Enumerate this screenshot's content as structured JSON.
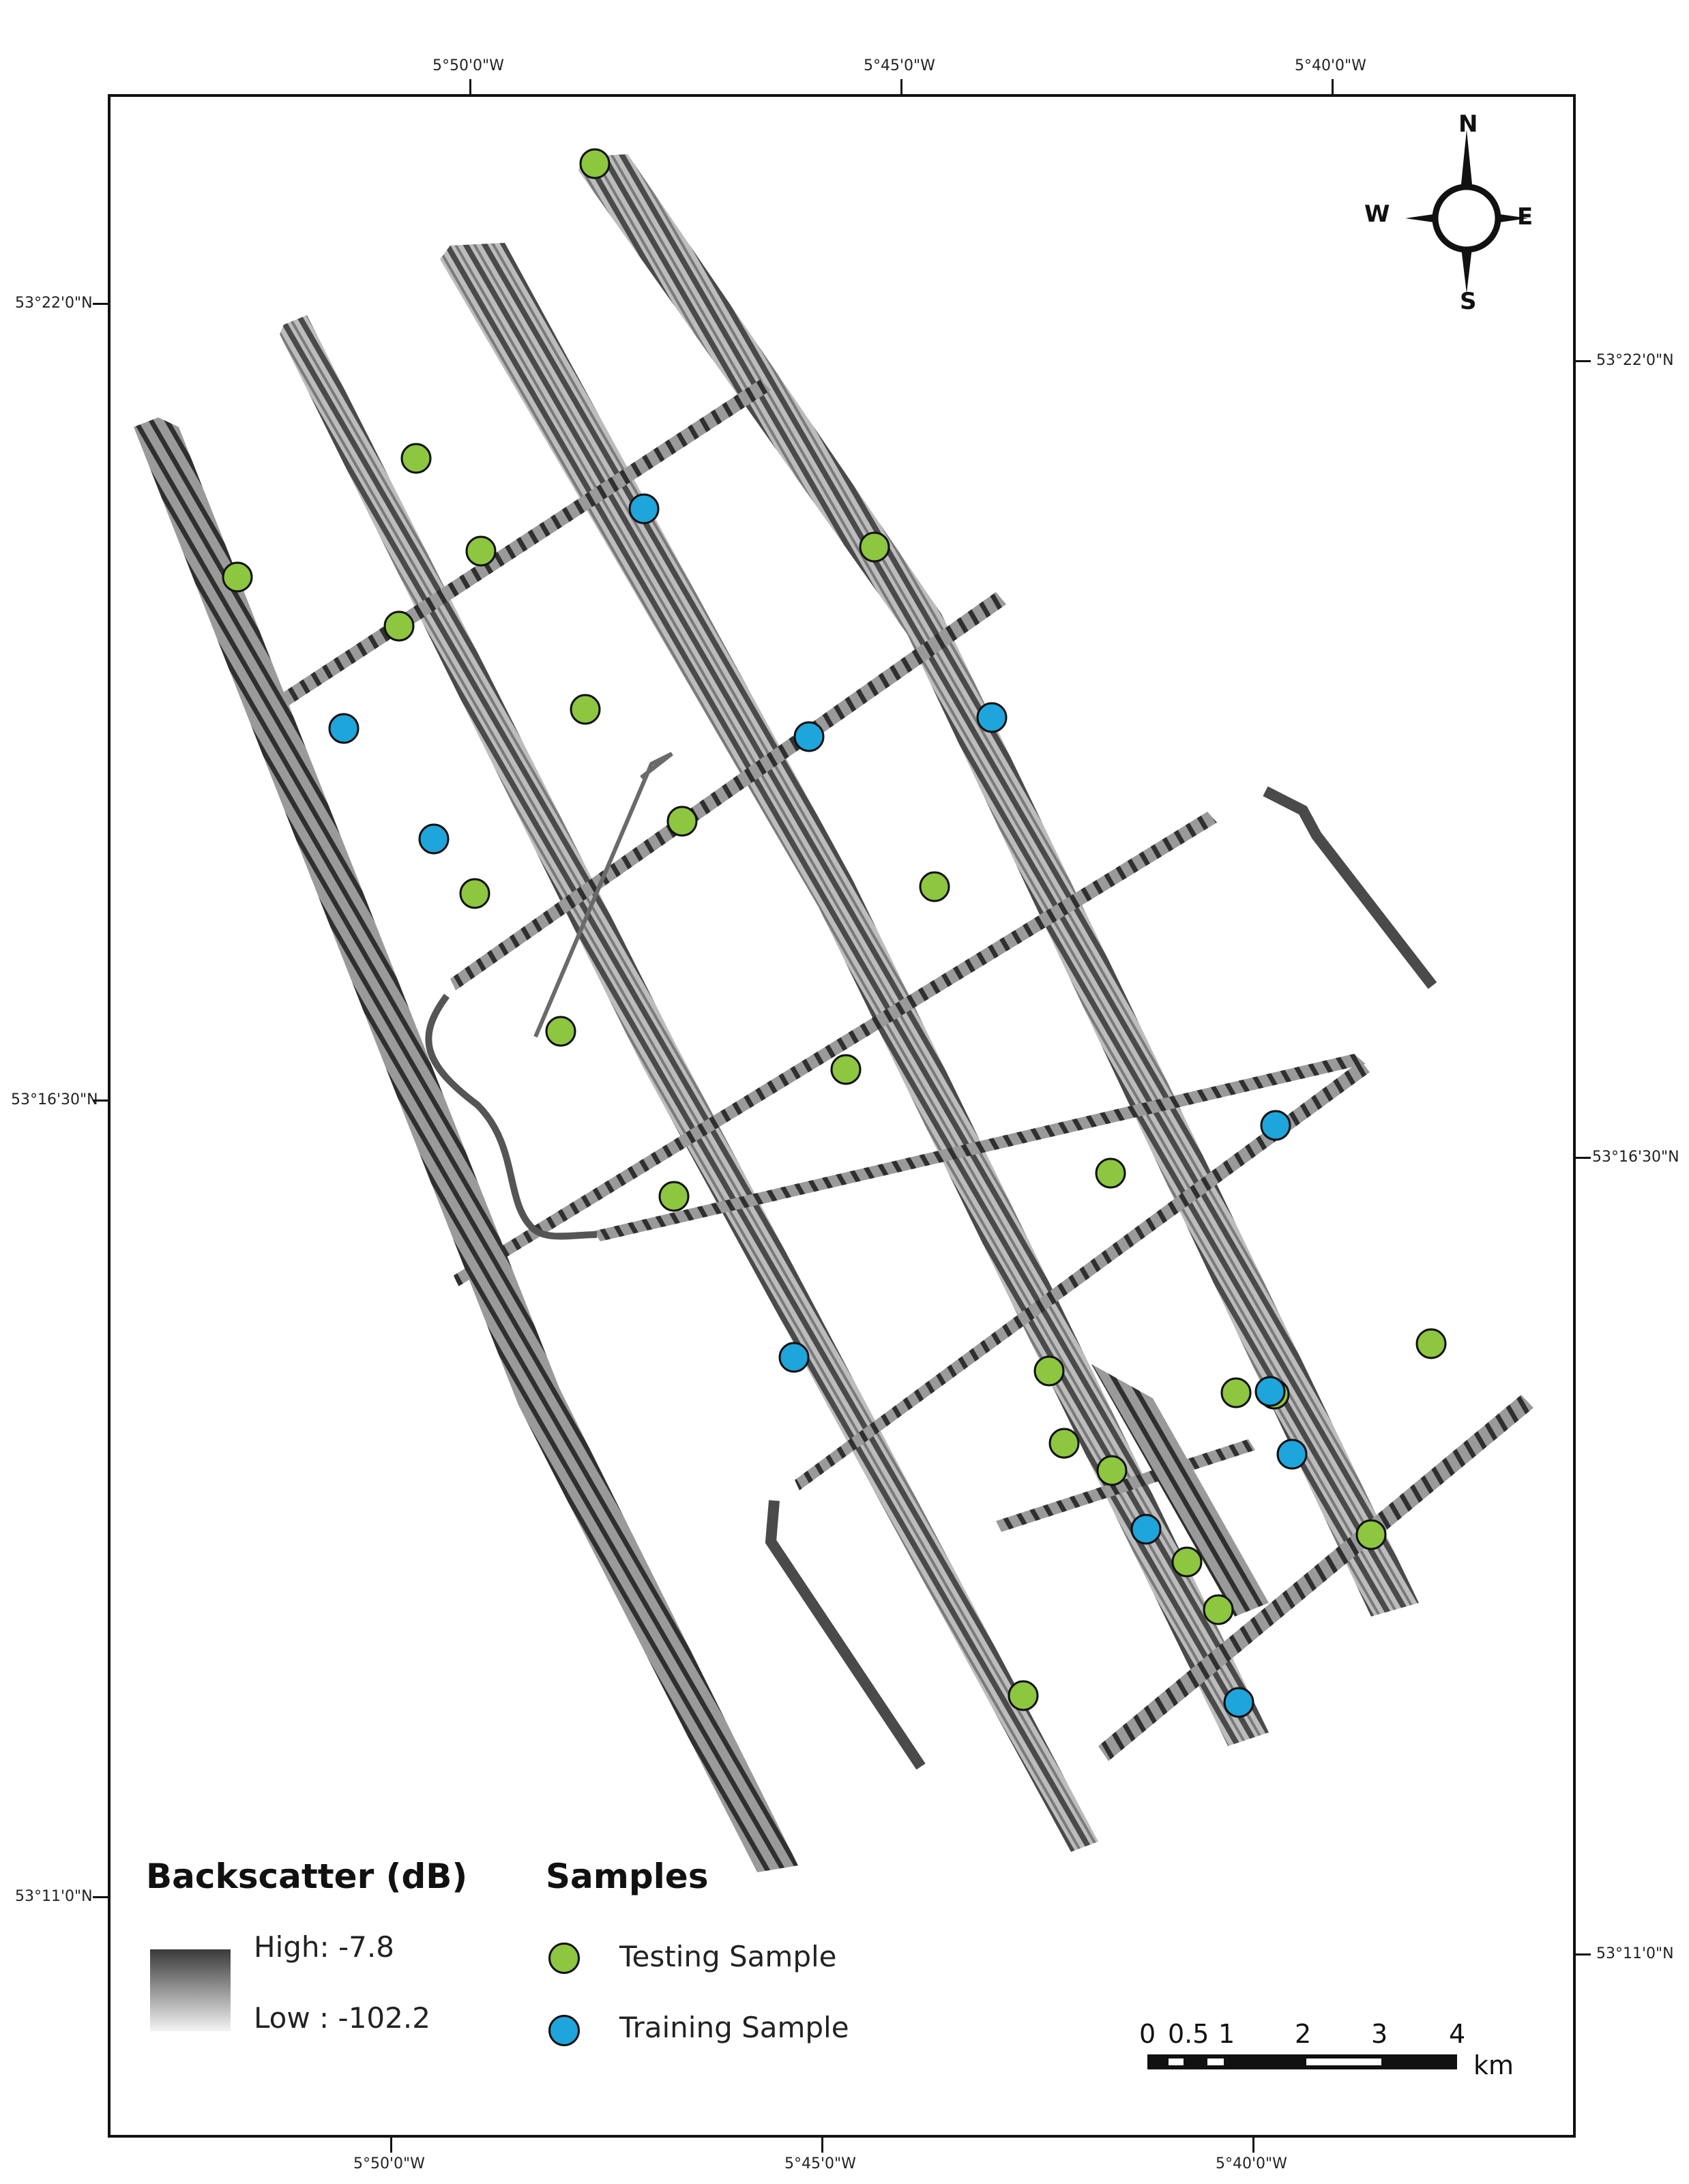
{
  "axis_ticks": {
    "top": [
      "5°50'0\"W",
      "5°45'0\"W",
      "5°40'0\"W"
    ],
    "bottom": [
      "5°50'0\"W",
      "5°45'0\"W",
      "5°40'0\"W"
    ],
    "left": [
      "53°22'0\"N",
      "53°16'30\"N",
      "53°11'0\"N"
    ],
    "right": [
      "53°22'0\"N",
      "53°16'30\"N",
      "53°11'0\"N"
    ]
  },
  "compass": {
    "n": "N",
    "s": "S",
    "e": "E",
    "w": "W"
  },
  "legend_backscatter": {
    "title": "Backscatter (dB)",
    "high_label": "High:  -7.8",
    "low_label": "Low :  -102.2"
  },
  "legend_samples": {
    "title": "Samples",
    "testing_label": "Testing Sample",
    "training_label": "Training Sample"
  },
  "scale_bar": {
    "labels": [
      "0",
      "0.5",
      "1",
      "2",
      "3",
      "4"
    ],
    "unit": "km"
  },
  "colors": {
    "testing": "#8dc63f",
    "training": "#1ea5dc",
    "swath_dark": "#3c3c3c",
    "swath_light": "#bdbdbd"
  }
}
